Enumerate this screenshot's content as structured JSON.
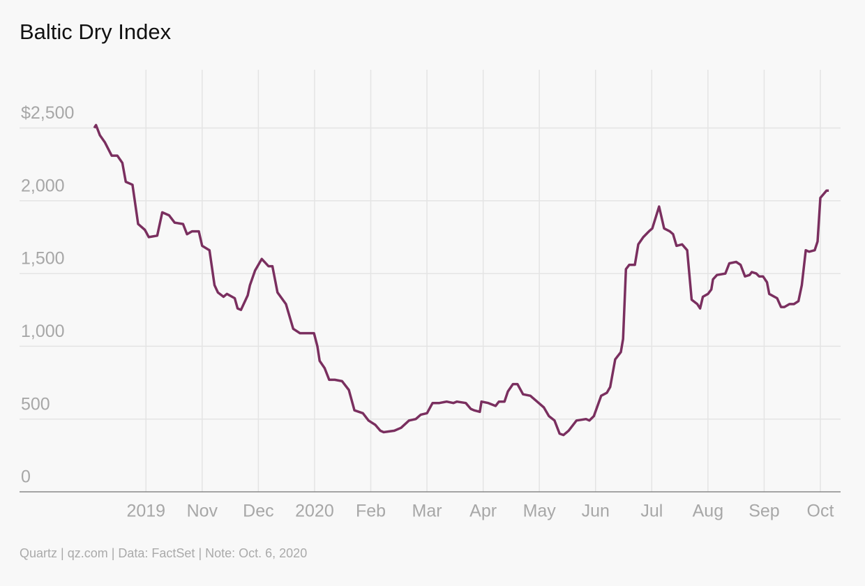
{
  "chart_data": {
    "type": "line",
    "title": "Baltic Dry Index",
    "source": "Quartz | qz.com | Data: FactSet | Note: Oct. 6, 2020",
    "color": "#7a2f5f",
    "grid": true,
    "xlim": [
      -2.25,
      12.36
    ],
    "ylim": [
      0,
      2900
    ],
    "xticks": [
      {
        "value": 0,
        "label": "2019"
      },
      {
        "value": 1,
        "label": "Nov"
      },
      {
        "value": 2,
        "label": "Dec"
      },
      {
        "value": 3,
        "label": "2020"
      },
      {
        "value": 4,
        "label": "Feb"
      },
      {
        "value": 5,
        "label": "Mar"
      },
      {
        "value": 6,
        "label": "Apr"
      },
      {
        "value": 7,
        "label": "May"
      },
      {
        "value": 8,
        "label": "Jun"
      },
      {
        "value": 9,
        "label": "Jul"
      },
      {
        "value": 10,
        "label": "Aug"
      },
      {
        "value": 11,
        "label": "Sep"
      },
      {
        "value": 12,
        "label": "Oct"
      }
    ],
    "yticks": [
      0,
      500,
      {
        "value": 1000,
        "label": "1,000"
      },
      {
        "value": 1500,
        "label": "1,500"
      },
      {
        "value": 2000,
        "label": "2,000"
      },
      {
        "value": 2500,
        "label": "$2,500"
      }
    ],
    "x": [
      -0.92,
      -0.89,
      -0.82,
      -0.73,
      -0.61,
      -0.51,
      -0.42,
      -0.36,
      -0.24,
      -0.14,
      -0.02,
      0.05,
      0.2,
      0.29,
      0.41,
      0.51,
      0.66,
      0.73,
      0.82,
      0.94,
      1.0,
      1.13,
      1.22,
      1.28,
      1.38,
      1.44,
      1.58,
      1.63,
      1.69,
      1.81,
      1.85,
      1.94,
      2.06,
      2.18,
      2.25,
      2.34,
      2.49,
      2.62,
      2.74,
      2.99,
      3.05,
      3.09,
      3.18,
      3.26,
      3.36,
      3.49,
      3.61,
      3.71,
      3.86,
      3.96,
      4.08,
      4.17,
      4.23,
      4.42,
      4.54,
      4.68,
      4.8,
      4.89,
      5.0,
      5.1,
      5.22,
      5.35,
      5.47,
      5.53,
      5.69,
      5.78,
      5.84,
      5.94,
      5.97,
      6.09,
      6.22,
      6.28,
      6.38,
      6.44,
      6.53,
      6.61,
      6.71,
      6.84,
      6.96,
      7.08,
      7.17,
      7.27,
      7.36,
      7.43,
      7.52,
      7.66,
      7.83,
      7.89,
      7.97,
      8.1,
      8.2,
      8.26,
      8.35,
      8.45,
      8.49,
      8.54,
      8.6,
      8.7,
      8.76,
      8.85,
      8.95,
      9.01,
      9.13,
      9.22,
      9.32,
      9.38,
      9.44,
      9.54,
      9.63,
      9.71,
      9.81,
      9.86,
      9.91,
      10.0,
      10.06,
      10.09,
      10.16,
      10.31,
      10.38,
      10.5,
      10.58,
      10.66,
      10.74,
      10.78,
      10.86,
      10.91,
      10.98,
      11.05,
      11.09,
      11.23,
      11.3,
      11.36,
      11.45,
      11.53,
      11.61,
      11.67,
      11.74,
      11.8,
      11.9,
      11.95,
      12.0,
      12.11,
      12.15
    ],
    "values": [
      2500,
      2520,
      2450,
      2400,
      2310,
      2310,
      2260,
      2130,
      2110,
      1840,
      1800,
      1750,
      1760,
      1920,
      1900,
      1850,
      1840,
      1770,
      1790,
      1790,
      1690,
      1660,
      1420,
      1370,
      1340,
      1360,
      1330,
      1260,
      1250,
      1350,
      1420,
      1520,
      1600,
      1550,
      1550,
      1370,
      1290,
      1120,
      1090,
      1090,
      1000,
      900,
      850,
      770,
      770,
      760,
      700,
      560,
      540,
      490,
      460,
      420,
      410,
      420,
      440,
      490,
      500,
      530,
      540,
      610,
      610,
      620,
      610,
      620,
      610,
      570,
      560,
      550,
      620,
      610,
      590,
      620,
      620,
      690,
      740,
      740,
      670,
      660,
      620,
      580,
      520,
      490,
      400,
      390,
      420,
      490,
      500,
      490,
      520,
      660,
      680,
      720,
      910,
      960,
      1050,
      1530,
      1560,
      1560,
      1700,
      1750,
      1790,
      1810,
      1960,
      1810,
      1790,
      1770,
      1690,
      1700,
      1660,
      1320,
      1290,
      1260,
      1340,
      1360,
      1390,
      1460,
      1490,
      1500,
      1570,
      1580,
      1560,
      1480,
      1490,
      1510,
      1500,
      1480,
      1480,
      1440,
      1360,
      1330,
      1270,
      1270,
      1290,
      1290,
      1310,
      1420,
      1660,
      1650,
      1660,
      1720,
      2020,
      2070,
      2070
    ]
  }
}
